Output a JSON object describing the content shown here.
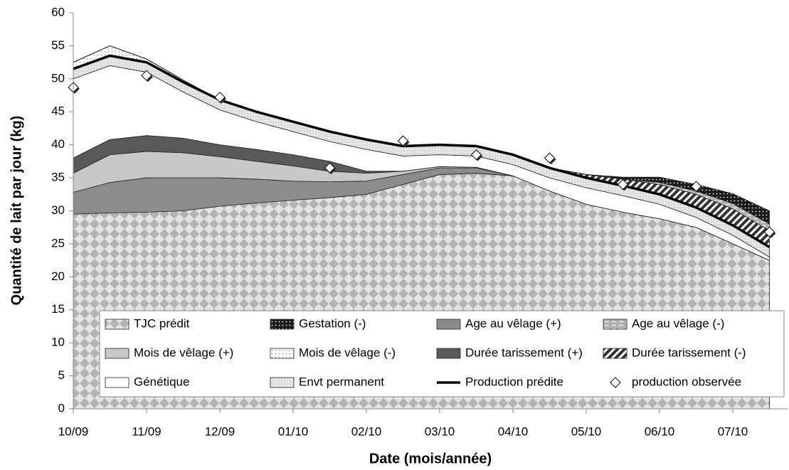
{
  "chart_data": {
    "type": "area",
    "stacked": true,
    "xlabel": "Date (mois/année)",
    "ylabel": "Quantité de lait par jour (kg)",
    "categories": [
      "10/09",
      null,
      "11/09",
      null,
      "12/09",
      null,
      "01/10",
      null,
      "02/10",
      null,
      "03/10",
      null,
      "04/10",
      null,
      "05/10",
      null,
      "06/10",
      null,
      "07/10",
      null
    ],
    "ylim": [
      0,
      60
    ],
    "yticks": [
      0,
      5,
      10,
      15,
      20,
      25,
      30,
      35,
      40,
      45,
      50,
      55,
      60
    ],
    "series": [
      {
        "name": "TJC prédit",
        "type": "area",
        "color": "#bdbdbd",
        "pattern": "diamond",
        "values": [
          29.5,
          29.7,
          29.8,
          30,
          30.7,
          31.2,
          31.6,
          32,
          32.5,
          34,
          35.5,
          35.7,
          35.3,
          33,
          31,
          29.8,
          28.8,
          27.5,
          25,
          22.5
        ]
      },
      {
        "name": "Gestation (-)",
        "type": "area",
        "color": "#1a1a1a",
        "pattern": "darkdots",
        "values": [
          0,
          0,
          0,
          0,
          0,
          0,
          0,
          0,
          0,
          0,
          0,
          0,
          0,
          0,
          0,
          0.3,
          0.8,
          1,
          1.5,
          2
        ]
      },
      {
        "name": "Age au vêlage (+)",
        "type": "area",
        "color": "#8c8c8c",
        "pattern": "solid",
        "values": [
          3.3,
          4.6,
          5.2,
          5,
          4.3,
          3.6,
          2.9,
          2.4,
          2,
          1.5,
          1,
          0.8,
          0,
          0,
          0,
          0,
          0,
          0,
          0,
          0
        ]
      },
      {
        "name": "Age au vêlage (-)",
        "type": "area",
        "color": "#b0b0b0",
        "pattern": "dashes",
        "values": [
          0,
          0,
          0,
          0,
          0,
          0,
          0,
          0,
          0,
          0,
          0,
          0,
          0,
          0,
          0,
          0,
          0.3,
          0.5,
          0.8,
          1
        ]
      },
      {
        "name": "Mois de vêlage (+)",
        "type": "area",
        "color": "#c8c8c8",
        "pattern": "solid",
        "values": [
          2.9,
          4.2,
          4,
          3.8,
          3.2,
          2.7,
          2.3,
          1.6,
          1.2,
          0.5,
          0.2,
          0.1,
          0,
          0,
          0,
          0,
          0,
          0,
          0,
          0
        ]
      },
      {
        "name": "Mois de vêlage (-)",
        "type": "area",
        "color": "#f2f2f2",
        "pattern": "lightdots",
        "values": [
          1,
          1.5,
          0.5,
          0.3,
          0,
          0,
          0,
          0,
          0,
          0,
          0,
          0,
          0,
          0,
          0,
          0,
          0,
          0,
          0,
          0
        ]
      },
      {
        "name": "Durée tarissement (+)",
        "type": "area",
        "color": "#595959",
        "pattern": "solid",
        "values": [
          2.3,
          2.3,
          2.4,
          2.2,
          1.8,
          1.8,
          1.7,
          1.5,
          0.3,
          0,
          0,
          0,
          0,
          0,
          0,
          0,
          0,
          0,
          0,
          0
        ]
      },
      {
        "name": "Durée tarissement (-)",
        "type": "area",
        "color": "#333333",
        "pattern": "hatch",
        "values": [
          0,
          0,
          0,
          0,
          0,
          0,
          0,
          0,
          0,
          0,
          0,
          0,
          0,
          0,
          0.5,
          1,
          1.5,
          2,
          2.5,
          2.5
        ]
      },
      {
        "name": "Génétique",
        "type": "area",
        "color": "#ffffff",
        "pattern": "solid",
        "values": [
          12,
          11.2,
          9.6,
          7,
          5.3,
          4.2,
          3.5,
          3,
          3.3,
          2.3,
          1.8,
          1.7,
          1.7,
          2,
          2.5,
          2.5,
          2.2,
          1.5,
          1.3,
          0.5
        ]
      },
      {
        "name": "Envt permanent",
        "type": "area",
        "color": "#d9d9d9",
        "pattern": "graydots",
        "values": [
          1.5,
          1.5,
          1.5,
          1.5,
          1.5,
          1.5,
          1.5,
          1.5,
          1.5,
          1.5,
          1.5,
          1.5,
          1.5,
          1.5,
          1.5,
          1.5,
          1.5,
          1.5,
          1.5,
          1.5
        ]
      },
      {
        "name": "Production prédite",
        "type": "line",
        "color": "#000000",
        "values": [
          51.5,
          53.5,
          52.5,
          49.5,
          46.8,
          45,
          43.5,
          42,
          40.8,
          39.8,
          40,
          39.8,
          38.5,
          36.5,
          35,
          33.8,
          32.5,
          30.5,
          27.8,
          24.5
        ]
      },
      {
        "name": "production observée",
        "type": "scatter",
        "color": "#ffffff",
        "values": [
          48.7,
          null,
          50.5,
          null,
          47.2,
          null,
          null,
          36.5,
          null,
          40.6,
          null,
          38.5,
          null,
          38,
          null,
          34,
          null,
          33.7,
          null,
          26.8
        ]
      }
    ]
  }
}
